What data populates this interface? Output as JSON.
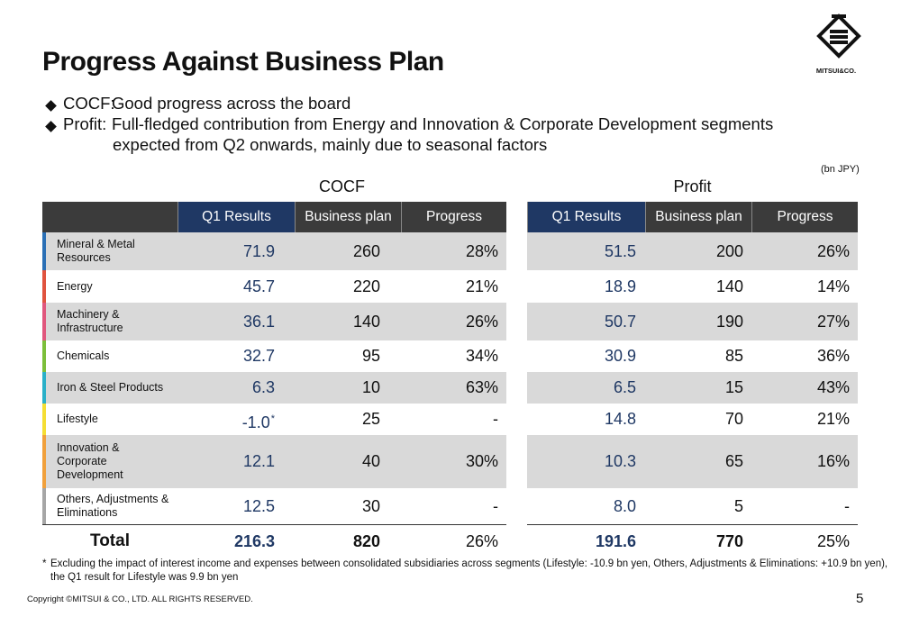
{
  "header": {
    "title": "Progress Against Business Plan",
    "logo_text": "MITSUI&CO."
  },
  "bullets": [
    {
      "label": "COCF:",
      "lines": [
        "Good progress across the board"
      ]
    },
    {
      "label": "Profit:",
      "lines": [
        "Full-fledged contribution from Energy and Innovation & Corporate Development segments",
        "expected from Q2 onwards, mainly due to seasonal factors"
      ]
    }
  ],
  "unit": "(bn JPY)",
  "table": {
    "groups": [
      "COCF",
      "Profit"
    ],
    "columns": [
      "Q1 Results",
      "Business plan",
      "Progress",
      "Q1 Results",
      "Business plan",
      "Progress"
    ],
    "rows": [
      {
        "segment": "Mineral & Metal Resources",
        "cells": [
          "71.9",
          "260",
          "28%",
          "51.5",
          "200",
          "26%"
        ]
      },
      {
        "segment": "Energy",
        "cells": [
          "45.7",
          "220",
          "21%",
          "18.9",
          "140",
          "14%"
        ]
      },
      {
        "segment": "Machinery & Infrastructure",
        "cells": [
          "36.1",
          "140",
          "26%",
          "50.7",
          "190",
          "27%"
        ]
      },
      {
        "segment": "Chemicals",
        "cells": [
          "32.7",
          "95",
          "34%",
          "30.9",
          "85",
          "36%"
        ]
      },
      {
        "segment": "Iron & Steel Products",
        "cells": [
          "6.3",
          "10",
          "63%",
          "6.5",
          "15",
          "43%"
        ]
      },
      {
        "segment": "Lifestyle",
        "cells": [
          "-1.0",
          "25",
          "-",
          "14.8",
          "70",
          "21%"
        ],
        "mark": "*"
      },
      {
        "segment": "Innovation & Corporate Development",
        "cells": [
          "12.1",
          "40",
          "30%",
          "10.3",
          "65",
          "16%"
        ]
      },
      {
        "segment": "Others, Adjustments & Eliminations",
        "cells": [
          "12.5",
          "30",
          "-",
          "8.0",
          "5",
          "-"
        ]
      }
    ],
    "total": {
      "segment": "Total",
      "cells": [
        "216.3",
        "820",
        "26%",
        "191.6",
        "770",
        "25%"
      ]
    }
  },
  "footnote": {
    "mark": "*",
    "lines": [
      "Excluding the impact of interest income and expenses between consolidated subsidiaries across segments (Lifestyle: -10.9 bn yen, Others, Adjustments & Eliminations: +10.9 bn yen),",
      "the Q1 result for Lifestyle was 9.9 bn yen"
    ]
  },
  "footer": {
    "copyright": "Copyright ©MITSUI & CO., LTD. ALL RIGHTS RESERVED.",
    "page": "5"
  }
}
